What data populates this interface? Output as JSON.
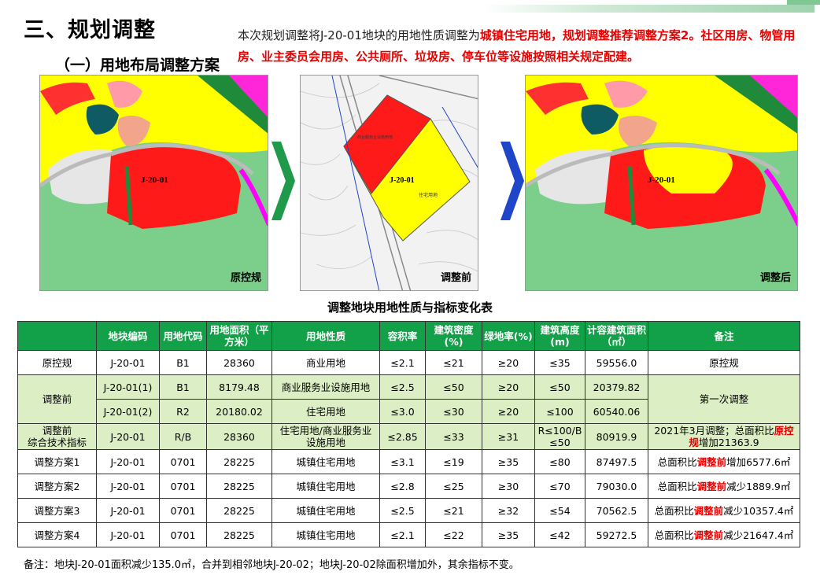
{
  "header": {
    "title": "三、规划调整",
    "subtitle": "（一）用地布局调整方案",
    "intro_prefix": "本次规划调整将J-20-01地块的用地性质调整为",
    "intro_red": "城镇住宅用地，规划调整推荐调整方案2。社区用房、物管用房、业主委员会用房、公共厕所、垃圾房、停车位等设施按照相关规定配建。"
  },
  "maps": {
    "original": {
      "label": "原控规",
      "plot": "J-20-01"
    },
    "before": {
      "label": "调整前",
      "plot": "J-20-01",
      "plot_sub": "住宅用地",
      "plot_top": "商业服务业设施用地"
    },
    "after": {
      "label": "调整后",
      "plot": "J-20-01"
    }
  },
  "table": {
    "title": "调整地块用地性质与指标变化表",
    "headers": [
      "地块编码",
      "用地代码",
      "用地面积（平方米）",
      "用地性质",
      "容积率",
      "建筑密度(%)",
      "绿地率(%)",
      "建筑高度(m)",
      "计容建筑面积（㎡）",
      "备注"
    ],
    "rows": {
      "r0": {
        "name": "原控规",
        "code": "J-20-01",
        "type": "B1",
        "area": "28360",
        "nature": "商业用地",
        "far": "≤2.1",
        "density": "≤21",
        "green": "≥20",
        "height": "≤35",
        "gfa": "59556.0",
        "note": "原控规"
      },
      "r1": {
        "name": "调整前",
        "code": "J-20-01(1)",
        "type": "B1",
        "area": "8179.48",
        "nature": "商业服务业设施用地",
        "far": "≤2.5",
        "density": "≤50",
        "green": "≥20",
        "height": "≤50",
        "gfa": "20379.82",
        "note": "第一次调整"
      },
      "r2": {
        "code": "J-20-01(2)",
        "type": "R2",
        "area": "20180.02",
        "nature": "住宅用地",
        "far": "≤3.0",
        "density": "≤30",
        "green": "≥20",
        "height": "≤100",
        "gfa": "60540.06"
      },
      "r3": {
        "name_line1": "调整前",
        "name_line2": "综合技术指标",
        "code": "J-20-01",
        "type": "R/B",
        "area": "28360",
        "nature_line1": "住宅用地/商业服务业",
        "nature_line2": "设施用地",
        "far": "≤2.85",
        "density": "≤33",
        "green": "≥31",
        "height_line1": "R≤100/B",
        "height_line2": "≤50",
        "gfa": "80919.9",
        "note_pre": "2021年3月调整；总面积比",
        "note_hl": "原控规",
        "note_post": "增加21363.9"
      },
      "r4": {
        "name": "调整方案1",
        "code": "J-20-01",
        "type": "0701",
        "area": "28225",
        "nature": "城镇住宅用地",
        "far": "≤3.1",
        "density": "≤19",
        "green": "≥35",
        "height": "≤80",
        "gfa": "87497.5",
        "note_pre": "总面积比",
        "note_hl": "调整前",
        "note_post": "增加6577.6㎡"
      },
      "r5": {
        "name": "调整方案2",
        "code": "J-20-01",
        "type": "0701",
        "area": "28225",
        "nature": "城镇住宅用地",
        "far": "≤2.8",
        "density": "≤25",
        "green": "≥30",
        "height": "≤70",
        "gfa": "79030.0",
        "note_pre": "总面积比",
        "note_hl": "调整前",
        "note_post": "减少1889.9㎡"
      },
      "r6": {
        "name": "调整方案3",
        "code": "J-20-01",
        "type": "0701",
        "area": "28225",
        "nature": "城镇住宅用地",
        "far": "≤2.5",
        "density": "≤21",
        "green": "≥32",
        "height": "≤54",
        "gfa": "70562.5",
        "note_pre": "总面积比",
        "note_hl": "调整前",
        "note_post": "减少10357.4㎡"
      },
      "r7": {
        "name": "调整方案4",
        "code": "J-20-01",
        "type": "0701",
        "area": "28225",
        "nature": "城镇住宅用地",
        "far": "≤2.1",
        "density": "≤22",
        "green": "≥35",
        "height": "≤42",
        "gfa": "59272.5",
        "note_pre": "总面积比",
        "note_hl": "调整前",
        "note_post": "减少21647.4㎡"
      }
    }
  },
  "footnote": "备注：地块J-20-01面积减少135.0㎡，合并到相邻地块J-20-02；地块J-20-02除面积增加外，其余指标不变。",
  "colors": {
    "header_green": "#12a048",
    "row_green": "#dcefc4",
    "highlight_red": "#e60000",
    "arrow_green": "#1e9a4a",
    "arrow_blue": "#1f45c8"
  }
}
